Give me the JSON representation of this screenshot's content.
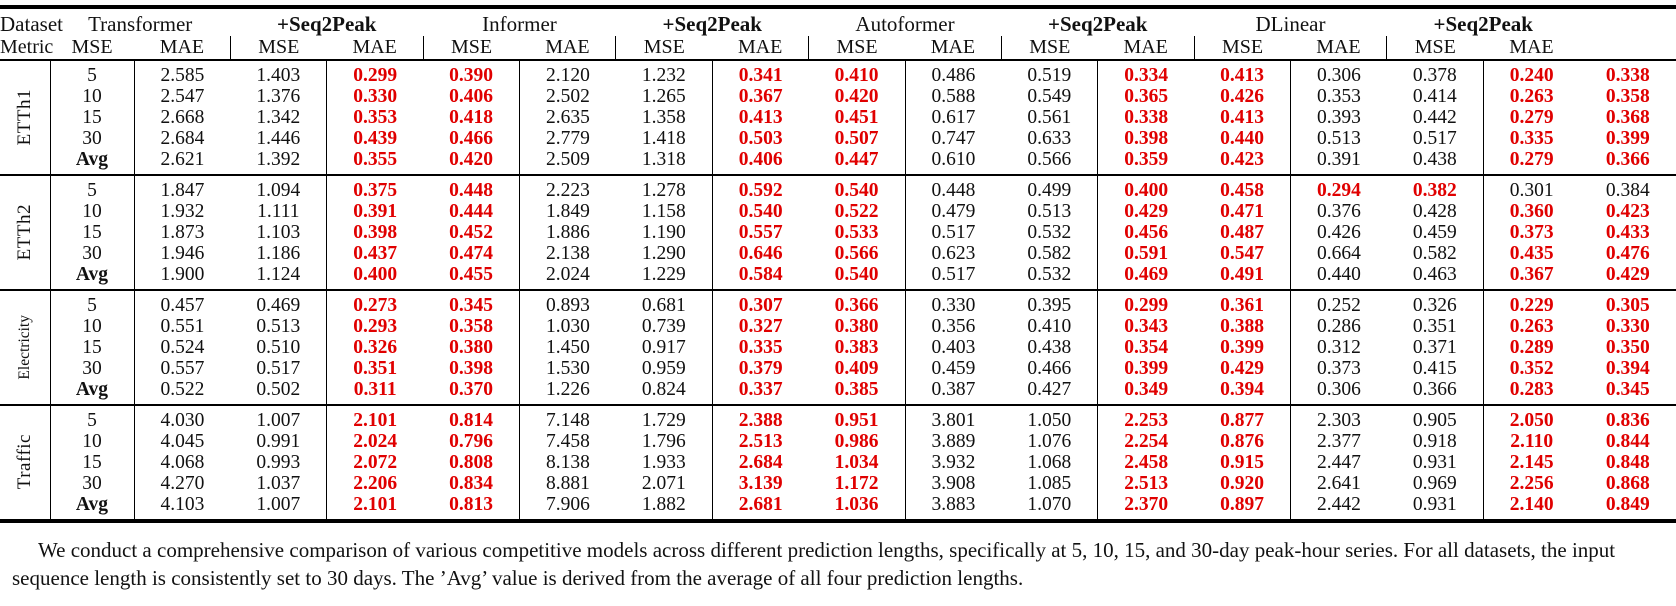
{
  "accent_red": "#e00000",
  "header": {
    "col1_top": "Dataset",
    "col1_bottom": "Metric",
    "metric_labels": [
      "MSE",
      "MAE"
    ],
    "models": [
      {
        "name": "Transformer",
        "emphasis": false
      },
      {
        "name": "+Seq2Peak",
        "emphasis": true
      },
      {
        "name": "Informer",
        "emphasis": false
      },
      {
        "name": "+Seq2Peak",
        "emphasis": true
      },
      {
        "name": "Autoformer",
        "emphasis": false
      },
      {
        "name": "+Seq2Peak",
        "emphasis": true
      },
      {
        "name": "DLinear",
        "emphasis": false
      },
      {
        "name": "+Seq2Peak",
        "emphasis": true
      }
    ]
  },
  "groups": [
    {
      "dataset": "ETTh1",
      "rows": [
        {
          "metric": "5",
          "values": [
            "2.585",
            "1.403",
            "0.299",
            "0.390",
            "2.120",
            "1.232",
            "0.341",
            "0.410",
            "0.486",
            "0.519",
            "0.334",
            "0.413",
            "0.306",
            "0.378",
            "0.240",
            "0.338"
          ],
          "red": [
            2,
            3,
            6,
            7,
            10,
            11,
            14,
            15
          ]
        },
        {
          "metric": "10",
          "values": [
            "2.547",
            "1.376",
            "0.330",
            "0.406",
            "2.502",
            "1.265",
            "0.367",
            "0.420",
            "0.588",
            "0.549",
            "0.365",
            "0.426",
            "0.353",
            "0.414",
            "0.263",
            "0.358"
          ],
          "red": [
            2,
            3,
            6,
            7,
            10,
            11,
            14,
            15
          ]
        },
        {
          "metric": "15",
          "values": [
            "2.668",
            "1.342",
            "0.353",
            "0.418",
            "2.635",
            "1.358",
            "0.413",
            "0.451",
            "0.617",
            "0.561",
            "0.338",
            "0.413",
            "0.393",
            "0.442",
            "0.279",
            "0.368"
          ],
          "red": [
            2,
            3,
            6,
            7,
            10,
            11,
            14,
            15
          ]
        },
        {
          "metric": "30",
          "values": [
            "2.684",
            "1.446",
            "0.439",
            "0.466",
            "2.779",
            "1.418",
            "0.503",
            "0.507",
            "0.747",
            "0.633",
            "0.398",
            "0.440",
            "0.513",
            "0.517",
            "0.335",
            "0.399"
          ],
          "red": [
            2,
            3,
            6,
            7,
            10,
            11,
            14,
            15
          ]
        },
        {
          "metric": "Avg",
          "values": [
            "2.621",
            "1.392",
            "0.355",
            "0.420",
            "2.509",
            "1.318",
            "0.406",
            "0.447",
            "0.610",
            "0.566",
            "0.359",
            "0.423",
            "0.391",
            "0.438",
            "0.279",
            "0.366"
          ],
          "red": [
            2,
            3,
            6,
            7,
            10,
            11,
            14,
            15
          ]
        }
      ]
    },
    {
      "dataset": "ETTh2",
      "rows": [
        {
          "metric": "5",
          "values": [
            "1.847",
            "1.094",
            "0.375",
            "0.448",
            "2.223",
            "1.278",
            "0.592",
            "0.540",
            "0.448",
            "0.499",
            "0.400",
            "0.458",
            "0.294",
            "0.382",
            "0.301",
            "0.384"
          ],
          "red": [
            2,
            3,
            6,
            7,
            10,
            11,
            12,
            13
          ]
        },
        {
          "metric": "10",
          "values": [
            "1.932",
            "1.111",
            "0.391",
            "0.444",
            "1.849",
            "1.158",
            "0.540",
            "0.522",
            "0.479",
            "0.513",
            "0.429",
            "0.471",
            "0.376",
            "0.428",
            "0.360",
            "0.423"
          ],
          "red": [
            2,
            3,
            6,
            7,
            10,
            11,
            14,
            15
          ]
        },
        {
          "metric": "15",
          "values": [
            "1.873",
            "1.103",
            "0.398",
            "0.452",
            "1.886",
            "1.190",
            "0.557",
            "0.533",
            "0.517",
            "0.532",
            "0.456",
            "0.487",
            "0.426",
            "0.459",
            "0.373",
            "0.433"
          ],
          "red": [
            2,
            3,
            6,
            7,
            10,
            11,
            14,
            15
          ]
        },
        {
          "metric": "30",
          "values": [
            "1.946",
            "1.186",
            "0.437",
            "0.474",
            "2.138",
            "1.290",
            "0.646",
            "0.566",
            "0.623",
            "0.582",
            "0.591",
            "0.547",
            "0.664",
            "0.582",
            "0.435",
            "0.476"
          ],
          "red": [
            2,
            3,
            6,
            7,
            10,
            11,
            14,
            15
          ]
        },
        {
          "metric": "Avg",
          "values": [
            "1.900",
            "1.124",
            "0.400",
            "0.455",
            "2.024",
            "1.229",
            "0.584",
            "0.540",
            "0.517",
            "0.532",
            "0.469",
            "0.491",
            "0.440",
            "0.463",
            "0.367",
            "0.429"
          ],
          "red": [
            2,
            3,
            6,
            7,
            10,
            11,
            14,
            15
          ]
        }
      ]
    },
    {
      "dataset": "Electricity",
      "rows": [
        {
          "metric": "5",
          "values": [
            "0.457",
            "0.469",
            "0.273",
            "0.345",
            "0.893",
            "0.681",
            "0.307",
            "0.366",
            "0.330",
            "0.395",
            "0.299",
            "0.361",
            "0.252",
            "0.326",
            "0.229",
            "0.305"
          ],
          "red": [
            2,
            3,
            6,
            7,
            10,
            11,
            14,
            15
          ]
        },
        {
          "metric": "10",
          "values": [
            "0.551",
            "0.513",
            "0.293",
            "0.358",
            "1.030",
            "0.739",
            "0.327",
            "0.380",
            "0.356",
            "0.410",
            "0.343",
            "0.388",
            "0.286",
            "0.351",
            "0.263",
            "0.330"
          ],
          "red": [
            2,
            3,
            6,
            7,
            10,
            11,
            14,
            15
          ]
        },
        {
          "metric": "15",
          "values": [
            "0.524",
            "0.510",
            "0.326",
            "0.380",
            "1.450",
            "0.917",
            "0.335",
            "0.383",
            "0.403",
            "0.438",
            "0.354",
            "0.399",
            "0.312",
            "0.371",
            "0.289",
            "0.350"
          ],
          "red": [
            2,
            3,
            6,
            7,
            10,
            11,
            14,
            15
          ]
        },
        {
          "metric": "30",
          "values": [
            "0.557",
            "0.517",
            "0.351",
            "0.398",
            "1.530",
            "0.959",
            "0.379",
            "0.409",
            "0.459",
            "0.466",
            "0.399",
            "0.429",
            "0.373",
            "0.415",
            "0.352",
            "0.394"
          ],
          "red": [
            2,
            3,
            6,
            7,
            10,
            11,
            14,
            15
          ]
        },
        {
          "metric": "Avg",
          "values": [
            "0.522",
            "0.502",
            "0.311",
            "0.370",
            "1.226",
            "0.824",
            "0.337",
            "0.385",
            "0.387",
            "0.427",
            "0.349",
            "0.394",
            "0.306",
            "0.366",
            "0.283",
            "0.345"
          ],
          "red": [
            2,
            3,
            6,
            7,
            10,
            11,
            14,
            15
          ]
        }
      ]
    },
    {
      "dataset": "Traffic",
      "rows": [
        {
          "metric": "5",
          "values": [
            "4.030",
            "1.007",
            "2.101",
            "0.814",
            "7.148",
            "1.729",
            "2.388",
            "0.951",
            "3.801",
            "1.050",
            "2.253",
            "0.877",
            "2.303",
            "0.905",
            "2.050",
            "0.836"
          ],
          "red": [
            2,
            3,
            6,
            7,
            10,
            11,
            14,
            15
          ]
        },
        {
          "metric": "10",
          "values": [
            "4.045",
            "0.991",
            "2.024",
            "0.796",
            "7.458",
            "1.796",
            "2.513",
            "0.986",
            "3.889",
            "1.076",
            "2.254",
            "0.876",
            "2.377",
            "0.918",
            "2.110",
            "0.844"
          ],
          "red": [
            2,
            3,
            6,
            7,
            10,
            11,
            14,
            15
          ]
        },
        {
          "metric": "15",
          "values": [
            "4.068",
            "0.993",
            "2.072",
            "0.808",
            "8.138",
            "1.933",
            "2.684",
            "1.034",
            "3.932",
            "1.068",
            "2.458",
            "0.915",
            "2.447",
            "0.931",
            "2.145",
            "0.848"
          ],
          "red": [
            2,
            3,
            6,
            7,
            10,
            11,
            14,
            15
          ]
        },
        {
          "metric": "30",
          "values": [
            "4.270",
            "1.037",
            "2.206",
            "0.834",
            "8.881",
            "2.071",
            "3.139",
            "1.172",
            "3.908",
            "1.085",
            "2.513",
            "0.920",
            "2.641",
            "0.969",
            "2.256",
            "0.868"
          ],
          "red": [
            2,
            3,
            6,
            7,
            10,
            11,
            14,
            15
          ]
        },
        {
          "metric": "Avg",
          "values": [
            "4.103",
            "1.007",
            "2.101",
            "0.813",
            "7.906",
            "1.882",
            "2.681",
            "1.036",
            "3.883",
            "1.070",
            "2.370",
            "0.897",
            "2.442",
            "0.931",
            "2.140",
            "0.849"
          ],
          "red": [
            2,
            3,
            6,
            7,
            10,
            11,
            14,
            15
          ]
        }
      ]
    }
  ],
  "caption": "We conduct a comprehensive comparison of various competitive models across different prediction lengths, specifically at 5, 10, 15, and 30-day peak-hour series. For all datasets, the input sequence length is consistently set to 30 days. The ’Avg’ value is derived from the average of all four prediction lengths."
}
